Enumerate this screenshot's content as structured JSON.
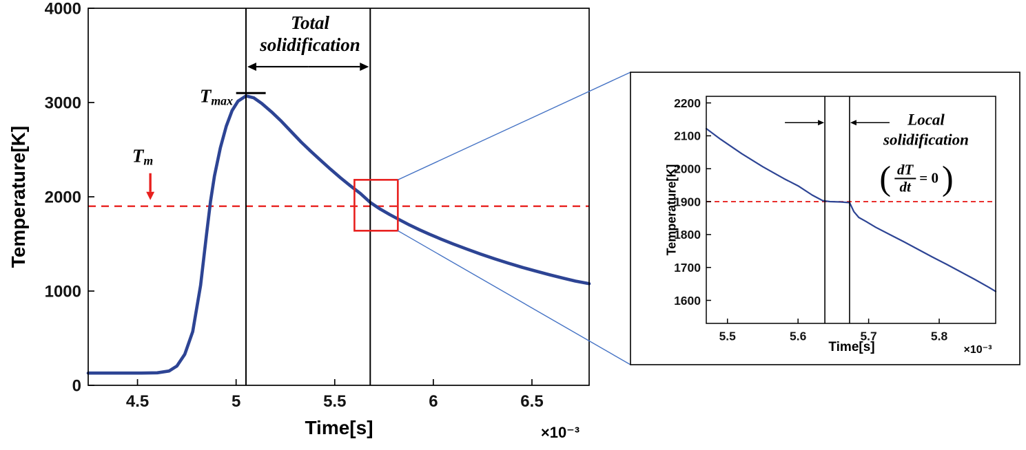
{
  "zoom_lines_color": "#4472c4",
  "chart_data": [
    {
      "id": "main",
      "type": "line",
      "xlabel": "Time[s]",
      "ylabel": "Temperature[K]",
      "x_scale": "×10⁻³",
      "xlim": [
        4.25,
        6.79
      ],
      "ylim": [
        0,
        4000
      ],
      "xtick_values": [
        4.5,
        5,
        5.5,
        6,
        6.5
      ],
      "xtick_labels": [
        "4.5",
        "5",
        "5.5",
        "6",
        "6.5"
      ],
      "ytick_values": [
        0,
        1000,
        2000,
        3000,
        4000
      ],
      "ytick_labels": [
        "0",
        "1000",
        "2000",
        "3000",
        "4000"
      ],
      "grid": false,
      "series": [
        {
          "name": "temperature-history",
          "color": "#2d4494",
          "points": [
            [
              4.25,
              130
            ],
            [
              4.4,
              130
            ],
            [
              4.52,
              130
            ],
            [
              4.6,
              133
            ],
            [
              4.66,
              152
            ],
            [
              4.7,
              205
            ],
            [
              4.74,
              330
            ],
            [
              4.78,
              570
            ],
            [
              4.82,
              1060
            ],
            [
              4.85,
              1600
            ],
            [
              4.87,
              1950
            ],
            [
              4.89,
              2220
            ],
            [
              4.92,
              2520
            ],
            [
              4.95,
              2750
            ],
            [
              4.98,
              2915
            ],
            [
              5.01,
              3015
            ],
            [
              5.05,
              3070
            ],
            [
              5.09,
              3050
            ],
            [
              5.13,
              2990
            ],
            [
              5.18,
              2900
            ],
            [
              5.23,
              2800
            ],
            [
              5.28,
              2690
            ],
            [
              5.33,
              2580
            ],
            [
              5.38,
              2480
            ],
            [
              5.43,
              2385
            ],
            [
              5.48,
              2290
            ],
            [
              5.53,
              2200
            ],
            [
              5.58,
              2115
            ],
            [
              5.63,
              2035
            ],
            [
              5.68,
              1940
            ],
            [
              5.73,
              1870
            ],
            [
              5.78,
              1810
            ],
            [
              5.83,
              1755
            ],
            [
              5.88,
              1700
            ],
            [
              5.93,
              1650
            ],
            [
              5.98,
              1603
            ],
            [
              6.04,
              1550
            ],
            [
              6.1,
              1500
            ],
            [
              6.17,
              1445
            ],
            [
              6.24,
              1392
            ],
            [
              6.31,
              1342
            ],
            [
              6.38,
              1296
            ],
            [
              6.45,
              1252
            ],
            [
              6.52,
              1212
            ],
            [
              6.59,
              1172
            ],
            [
              6.66,
              1136
            ],
            [
              6.72,
              1106
            ],
            [
              6.79,
              1078
            ]
          ]
        }
      ],
      "melting_line": {
        "y": 1900,
        "color": "#e8201e",
        "style": "dashed"
      },
      "solidification_vlines": [
        5.05,
        5.68
      ],
      "zoom_rect": {
        "x0": 5.6,
        "x1": 5.82,
        "y0": 1640,
        "y1": 2180,
        "color": "#e8201e"
      },
      "annotations": {
        "total_arrow_y": 3380,
        "tmax_marker": {
          "x0": 5.0,
          "x1": 5.15,
          "y": 3100
        },
        "tm_arrow": {
          "x": 4.565,
          "y_from": 2250,
          "y_to": 1965
        }
      },
      "labels": {
        "t_max_base": "T",
        "t_max_sub": "max",
        "t_m_base": "T",
        "t_m_sub": "m",
        "total_line1": "Total",
        "total_line2": "solidification"
      }
    },
    {
      "id": "inset",
      "type": "line",
      "xlabel": "Time[s]",
      "ylabel": "Temperature[K]",
      "x_scale": "×10⁻³",
      "xlim": [
        5.47,
        5.88
      ],
      "ylim": [
        1530,
        2220
      ],
      "xtick_values": [
        5.5,
        5.6,
        5.7,
        5.8
      ],
      "xtick_labels": [
        "5.5",
        "5.6",
        "5.7",
        "5.8"
      ],
      "ytick_values": [
        1600,
        1700,
        1800,
        1900,
        2000,
        2100,
        2200
      ],
      "ytick_labels": [
        "1600",
        "1700",
        "1800",
        "1900",
        "2000",
        "2100",
        "2200"
      ],
      "grid": false,
      "series": [
        {
          "name": "temperature-history-zoom",
          "color": "#2d4494",
          "points": [
            [
              5.47,
              2122
            ],
            [
              5.49,
              2090
            ],
            [
              5.52,
              2046
            ],
            [
              5.55,
              2006
            ],
            [
              5.58,
              1970
            ],
            [
              5.6,
              1948
            ],
            [
              5.62,
              1920
            ],
            [
              5.635,
              1903
            ],
            [
              5.645,
              1900
            ],
            [
              5.66,
              1899
            ],
            [
              5.673,
              1897
            ],
            [
              5.679,
              1870
            ],
            [
              5.686,
              1852
            ],
            [
              5.696,
              1840
            ],
            [
              5.71,
              1822
            ],
            [
              5.73,
              1800
            ],
            [
              5.75,
              1778
            ],
            [
              5.77,
              1755
            ],
            [
              5.79,
              1732
            ],
            [
              5.81,
              1710
            ],
            [
              5.83,
              1687
            ],
            [
              5.85,
              1664
            ],
            [
              5.87,
              1640
            ],
            [
              5.88,
              1627
            ]
          ]
        }
      ],
      "melting_line": {
        "y": 1900,
        "color": "#e8201e",
        "style": "dashed"
      },
      "solidification_vlines": [
        5.638,
        5.673
      ],
      "annotations": {
        "gap_arrow_y": 2140
      },
      "labels": {
        "local_line1": "Local",
        "local_line2": "solidification",
        "formula_lparen": "(",
        "formula_num": "dT",
        "formula_den": "dt",
        "formula_rhs": "= 0",
        "formula_rparen": ")"
      }
    }
  ]
}
